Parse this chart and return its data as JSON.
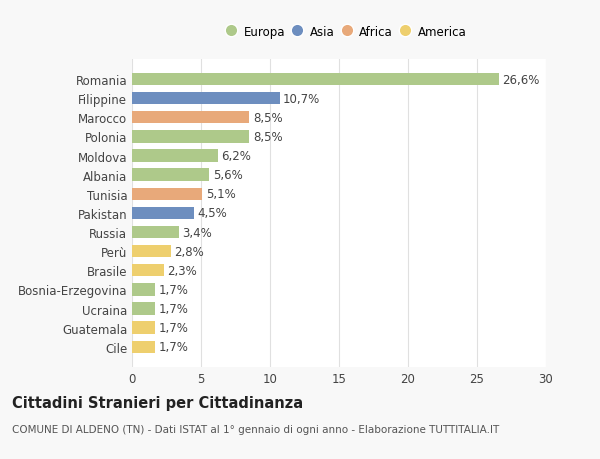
{
  "categories": [
    "Romania",
    "Filippine",
    "Marocco",
    "Polonia",
    "Moldova",
    "Albania",
    "Tunisia",
    "Pakistan",
    "Russia",
    "Perù",
    "Brasile",
    "Bosnia-Erzegovina",
    "Ucraina",
    "Guatemala",
    "Cile"
  ],
  "values": [
    26.6,
    10.7,
    8.5,
    8.5,
    6.2,
    5.6,
    5.1,
    4.5,
    3.4,
    2.8,
    2.3,
    1.7,
    1.7,
    1.7,
    1.7
  ],
  "labels": [
    "26,6%",
    "10,7%",
    "8,5%",
    "8,5%",
    "6,2%",
    "5,6%",
    "5,1%",
    "4,5%",
    "3,4%",
    "2,8%",
    "2,3%",
    "1,7%",
    "1,7%",
    "1,7%",
    "1,7%"
  ],
  "colors": [
    "#aec98a",
    "#6d8ebf",
    "#e8a97a",
    "#aec98a",
    "#aec98a",
    "#aec98a",
    "#e8a97a",
    "#6d8ebf",
    "#aec98a",
    "#eecf6e",
    "#eecf6e",
    "#aec98a",
    "#aec98a",
    "#eecf6e",
    "#eecf6e"
  ],
  "legend_labels": [
    "Europa",
    "Asia",
    "Africa",
    "America"
  ],
  "legend_colors": [
    "#aec98a",
    "#6d8ebf",
    "#e8a97a",
    "#eecf6e"
  ],
  "title": "Cittadini Stranieri per Cittadinanza",
  "subtitle": "COMUNE DI ALDENO (TN) - Dati ISTAT al 1° gennaio di ogni anno - Elaborazione TUTTITALIA.IT",
  "xlim": [
    0,
    30
  ],
  "xticks": [
    0,
    5,
    10,
    15,
    20,
    25,
    30
  ],
  "bg_color": "#f8f8f8",
  "plot_bg_color": "#ffffff",
  "grid_color": "#e0e0e0",
  "bar_height": 0.65,
  "label_fontsize": 8.5,
  "title_fontsize": 10.5,
  "subtitle_fontsize": 7.5,
  "tick_fontsize": 8.5
}
